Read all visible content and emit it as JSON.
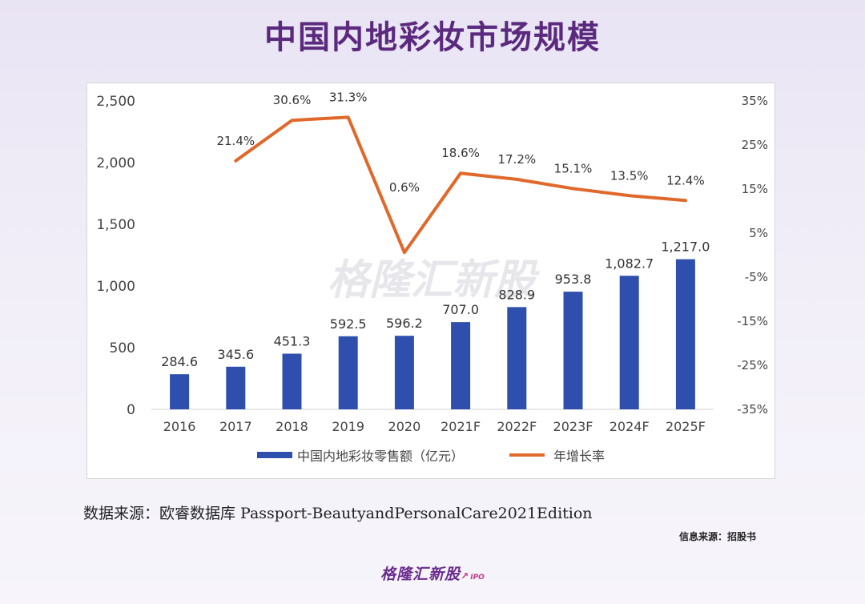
{
  "page": {
    "title": "中国内地彩妆市场规模",
    "source": "数据来源：欧睿数据库 Passport-BeautyandPersonalCare2021Edition",
    "source_note": "信息来源：招股书",
    "watermark": "格隆汇新股",
    "footer_brand": "格隆汇新股",
    "footer_ipo": "IPO"
  },
  "chart_data": {
    "type": "bar",
    "categories": [
      "2016",
      "2017",
      "2018",
      "2019",
      "2020",
      "2021F",
      "2022F",
      "2023F",
      "2024F",
      "2025F"
    ],
    "series": [
      {
        "name": "中国内地彩妆零售额（亿元）",
        "type": "bar",
        "axis": "left",
        "color": "#2f4fae",
        "values": [
          284.6,
          345.6,
          451.3,
          592.5,
          596.2,
          707.0,
          828.9,
          953.8,
          1082.7,
          1217.0
        ],
        "labels": [
          "284.6",
          "345.6",
          "451.3",
          "592.5",
          "596.2",
          "707.0",
          "828.9",
          "953.8",
          "1,082.7",
          "1,217.0"
        ]
      },
      {
        "name": "年增长率",
        "type": "line",
        "axis": "right",
        "color": "#e0682a",
        "values": [
          null,
          21.4,
          30.6,
          31.3,
          0.6,
          18.6,
          17.2,
          15.1,
          13.5,
          12.4
        ],
        "labels": [
          null,
          "21.4%",
          "30.6%",
          "31.3%",
          "0.6%",
          "18.6%",
          "17.2%",
          "15.1%",
          "13.5%",
          "12.4%"
        ]
      }
    ],
    "y_left": {
      "min": 0,
      "max": 2500,
      "ticks": [
        "0",
        "500",
        "1,000",
        "1,500",
        "2,000",
        "2,500"
      ]
    },
    "y_right": {
      "min": -35,
      "max": 35,
      "ticks": [
        "-35%",
        "-25%",
        "-15%",
        "-5%",
        "5%",
        "15%",
        "25%",
        "35%"
      ]
    },
    "legend_position": "bottom",
    "grid": false
  }
}
